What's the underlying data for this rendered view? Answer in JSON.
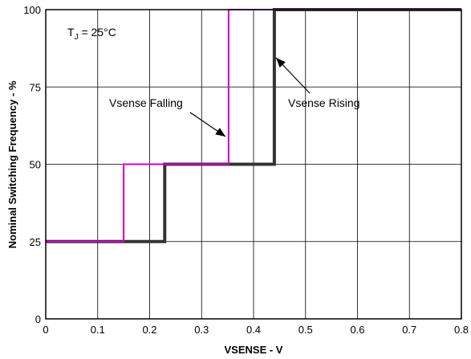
{
  "chart_data": {
    "type": "line",
    "xlabel": "VSENSE - V",
    "ylabel": "Nominal Switching Frequency - %",
    "xlim": [
      0,
      0.8
    ],
    "ylim": [
      0,
      100
    ],
    "x_ticks": [
      "0",
      "0.1",
      "0.2",
      "0.3",
      "0.4",
      "0.5",
      "0.6",
      "0.7",
      "0.8"
    ],
    "y_ticks": [
      "0",
      "25",
      "50",
      "75",
      "100"
    ],
    "grid": true,
    "series": [
      {
        "name": "Vsense Rising",
        "color": "#333333",
        "x": [
          0,
          0.229,
          0.229,
          0.44,
          0.44,
          0.8
        ],
        "y": [
          25,
          25,
          50,
          50,
          100,
          100
        ]
      },
      {
        "name": "Vsense Falling",
        "color": "#cc00cc",
        "x": [
          0,
          0.15,
          0.15,
          0.352,
          0.352,
          0.8
        ],
        "y": [
          25,
          25,
          50,
          50,
          100,
          100
        ]
      }
    ],
    "annotations": {
      "temp_main": "T",
      "temp_sub": "J",
      "temp_rest": " = 25°C",
      "falling_label": "Vsense Falling",
      "rising_label": "Vsense Rising"
    }
  }
}
